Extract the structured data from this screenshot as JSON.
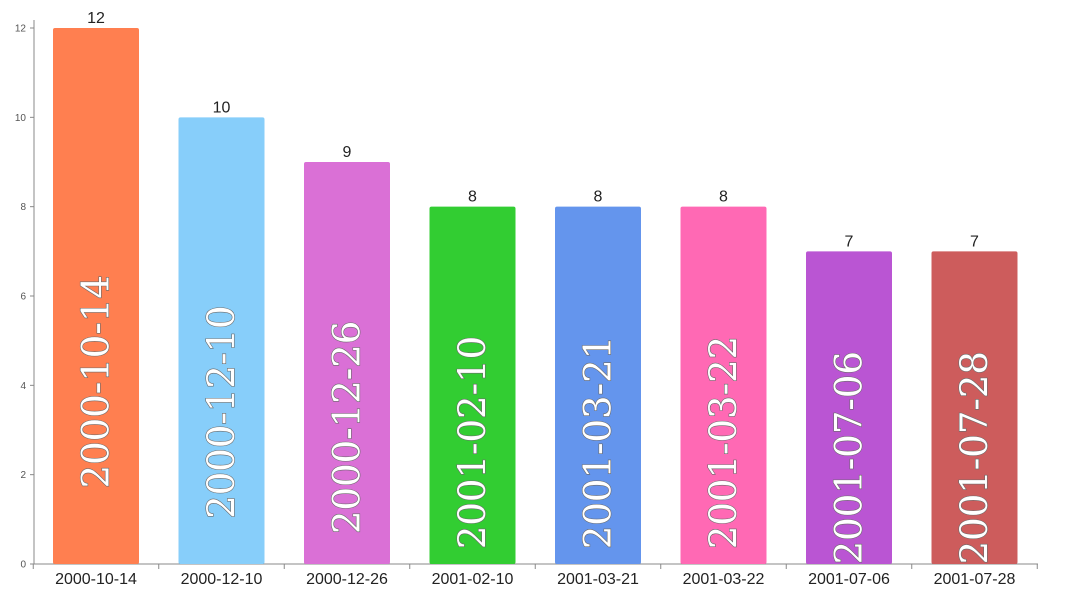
{
  "chart_data": {
    "type": "bar",
    "categories": [
      "2000-10-14",
      "2000-12-10",
      "2000-12-26",
      "2001-02-10",
      "2001-03-21",
      "2001-03-22",
      "2001-07-06",
      "2001-07-28"
    ],
    "values": [
      12,
      10,
      9,
      8,
      8,
      8,
      7,
      7
    ],
    "colors": [
      "#ff7f50",
      "#87cefa",
      "#da70d6",
      "#32cd32",
      "#6495ed",
      "#ff69b4",
      "#ba55d3",
      "#cd5c5c"
    ],
    "title": "",
    "xlabel": "",
    "ylabel": "",
    "ylim": [
      0,
      12
    ],
    "yticks": [
      0,
      2,
      4,
      6,
      8,
      10,
      12
    ],
    "grid": false,
    "legend": "none",
    "bar_labels": "category names drawn vertically inside each bar"
  }
}
